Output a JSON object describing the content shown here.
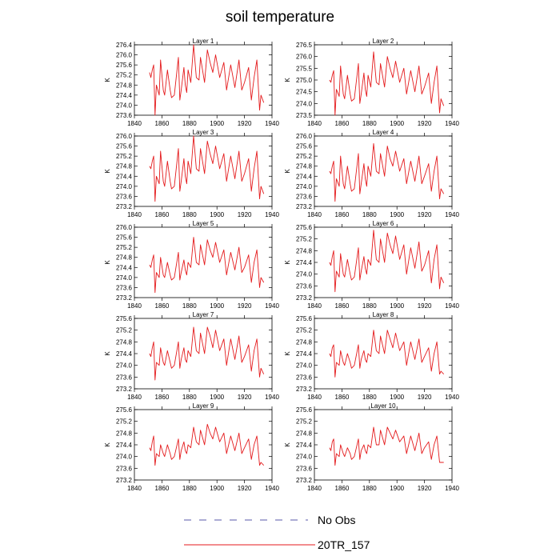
{
  "title": "soil temperature",
  "legend": {
    "placement": "bottom",
    "items": [
      {
        "label": "No Obs",
        "style": "dashed",
        "color": "#5a5aa8"
      },
      {
        "label": "20TR_157",
        "style": "solid",
        "color": "#e41a1c"
      }
    ]
  },
  "colors": {
    "series": "#e41a1c",
    "noobs": "#5a5aa8"
  },
  "chart_data": [
    {
      "type": "line",
      "title": "Layer 1",
      "ylabel": "K",
      "xlim": [
        1840,
        1940
      ],
      "xticks": [
        1840,
        1860,
        1880,
        1900,
        1920,
        1940
      ],
      "ylim": [
        273.6,
        276.4
      ],
      "yticks": [
        273.6,
        274.0,
        274.4,
        274.8,
        275.2,
        275.6,
        276.0,
        276.4
      ],
      "x": [
        1851,
        1852,
        1853,
        1854,
        1855,
        1856,
        1858,
        1859,
        1861,
        1862,
        1864,
        1866,
        1867,
        1869,
        1872,
        1873,
        1874,
        1876,
        1877,
        1878,
        1879,
        1881,
        1883,
        1885,
        1887,
        1888,
        1891,
        1893,
        1895,
        1897,
        1899,
        1902,
        1905,
        1907,
        1910,
        1913,
        1916,
        1918,
        1920,
        1923,
        1925,
        1927,
        1929,
        1931,
        1932,
        1934
      ],
      "y": [
        275.3,
        275.1,
        275.4,
        275.6,
        273.6,
        274.8,
        274.4,
        275.8,
        274.6,
        274.4,
        275.4,
        274.6,
        274.3,
        274.4,
        275.9,
        274.2,
        274.6,
        275.5,
        274.8,
        274.5,
        275.4,
        274.9,
        276.4,
        275.1,
        275.0,
        275.9,
        274.9,
        276.2,
        275.7,
        275.3,
        276.0,
        275.1,
        275.7,
        274.6,
        275.6,
        274.7,
        275.8,
        274.6,
        274.9,
        275.5,
        274.2,
        275.1,
        275.8,
        273.8,
        274.4,
        274.1
      ]
    },
    {
      "type": "line",
      "title": "Layer 2",
      "ylabel": "K",
      "xlim": [
        1840,
        1940
      ],
      "xticks": [
        1840,
        1860,
        1880,
        1900,
        1920,
        1940
      ],
      "ylim": [
        273.5,
        276.5
      ],
      "yticks": [
        273.5,
        274.0,
        274.5,
        275.0,
        275.5,
        276.0,
        276.5
      ],
      "x": [
        1851,
        1852,
        1853,
        1854,
        1855,
        1856,
        1858,
        1859,
        1861,
        1862,
        1864,
        1866,
        1867,
        1869,
        1872,
        1873,
        1874,
        1876,
        1877,
        1878,
        1879,
        1881,
        1883,
        1885,
        1887,
        1888,
        1891,
        1893,
        1895,
        1897,
        1899,
        1902,
        1905,
        1907,
        1910,
        1913,
        1916,
        1918,
        1920,
        1923,
        1925,
        1927,
        1929,
        1931,
        1932,
        1934
      ],
      "y": [
        275.0,
        274.9,
        275.2,
        275.4,
        273.5,
        274.6,
        274.3,
        275.6,
        274.4,
        274.2,
        275.2,
        274.4,
        274.1,
        274.2,
        275.7,
        274.0,
        274.4,
        275.3,
        274.6,
        274.3,
        275.2,
        274.7,
        276.2,
        274.9,
        274.8,
        275.7,
        274.7,
        276.0,
        275.5,
        275.1,
        275.8,
        274.9,
        275.5,
        274.4,
        275.4,
        274.5,
        275.6,
        274.4,
        274.7,
        275.3,
        274.0,
        274.9,
        275.6,
        273.6,
        274.2,
        273.9
      ]
    },
    {
      "type": "line",
      "title": "Layer 3",
      "ylabel": "K",
      "xlim": [
        1840,
        1940
      ],
      "xticks": [
        1840,
        1860,
        1880,
        1900,
        1920,
        1940
      ],
      "ylim": [
        273.2,
        276.0
      ],
      "yticks": [
        273.2,
        273.6,
        274.0,
        274.4,
        274.8,
        275.2,
        275.6,
        276.0
      ],
      "x": [
        1851,
        1852,
        1853,
        1854,
        1855,
        1856,
        1858,
        1859,
        1861,
        1862,
        1864,
        1866,
        1867,
        1869,
        1872,
        1873,
        1874,
        1876,
        1877,
        1878,
        1879,
        1881,
        1883,
        1885,
        1887,
        1888,
        1891,
        1893,
        1895,
        1897,
        1899,
        1902,
        1905,
        1907,
        1910,
        1913,
        1916,
        1918,
        1920,
        1923,
        1925,
        1927,
        1929,
        1931,
        1932,
        1934
      ],
      "y": [
        274.8,
        274.7,
        275.0,
        275.2,
        273.4,
        274.4,
        274.1,
        275.4,
        274.2,
        274.0,
        275.0,
        274.2,
        273.9,
        274.0,
        275.5,
        273.8,
        274.2,
        275.1,
        274.4,
        274.1,
        275.0,
        274.5,
        276.0,
        274.7,
        274.6,
        275.5,
        274.5,
        275.8,
        275.3,
        274.9,
        275.6,
        274.7,
        275.3,
        274.2,
        275.2,
        274.3,
        275.4,
        274.2,
        274.5,
        275.1,
        273.8,
        274.7,
        275.4,
        273.5,
        274.0,
        273.7
      ]
    },
    {
      "type": "line",
      "title": "Layer 4",
      "ylabel": "K",
      "xlim": [
        1840,
        1940
      ],
      "xticks": [
        1840,
        1860,
        1880,
        1900,
        1920,
        1940
      ],
      "ylim": [
        273.2,
        276.0
      ],
      "yticks": [
        273.2,
        273.6,
        274.0,
        274.4,
        274.8,
        275.2,
        275.6,
        276.0
      ],
      "x": [
        1851,
        1852,
        1853,
        1854,
        1855,
        1856,
        1858,
        1859,
        1861,
        1862,
        1864,
        1866,
        1867,
        1869,
        1872,
        1873,
        1874,
        1876,
        1877,
        1878,
        1879,
        1881,
        1883,
        1885,
        1887,
        1888,
        1891,
        1893,
        1895,
        1897,
        1899,
        1902,
        1905,
        1907,
        1910,
        1913,
        1916,
        1918,
        1920,
        1923,
        1925,
        1927,
        1929,
        1931,
        1932,
        1934
      ],
      "y": [
        274.6,
        274.5,
        274.8,
        275.0,
        273.4,
        274.3,
        274.0,
        275.2,
        274.1,
        273.9,
        274.8,
        274.1,
        273.8,
        273.9,
        275.3,
        273.7,
        274.1,
        274.9,
        274.3,
        274.0,
        274.8,
        274.4,
        275.7,
        274.6,
        274.5,
        275.3,
        274.4,
        275.6,
        275.1,
        274.8,
        275.4,
        274.6,
        275.1,
        274.1,
        275.0,
        274.2,
        275.2,
        274.1,
        274.4,
        274.9,
        273.8,
        274.6,
        275.2,
        273.5,
        273.9,
        273.7
      ]
    },
    {
      "type": "line",
      "title": "Layer 5",
      "ylabel": "K",
      "xlim": [
        1840,
        1940
      ],
      "xticks": [
        1840,
        1860,
        1880,
        1900,
        1920,
        1940
      ],
      "ylim": [
        273.2,
        276.0
      ],
      "yticks": [
        273.2,
        273.6,
        274.0,
        274.4,
        274.8,
        275.2,
        275.6,
        276.0
      ],
      "x": [
        1851,
        1852,
        1853,
        1854,
        1855,
        1856,
        1858,
        1859,
        1861,
        1862,
        1864,
        1866,
        1867,
        1869,
        1872,
        1873,
        1874,
        1876,
        1877,
        1878,
        1879,
        1881,
        1883,
        1885,
        1887,
        1888,
        1891,
        1893,
        1895,
        1897,
        1899,
        1902,
        1905,
        1907,
        1910,
        1913,
        1916,
        1918,
        1920,
        1923,
        1925,
        1927,
        1929,
        1931,
        1932,
        1934
      ],
      "y": [
        274.5,
        274.4,
        274.7,
        274.9,
        273.4,
        274.2,
        274.0,
        274.8,
        274.1,
        274.0,
        274.6,
        274.1,
        273.9,
        274.0,
        275.0,
        273.9,
        274.2,
        274.7,
        274.3,
        274.1,
        274.6,
        274.4,
        275.6,
        274.6,
        274.5,
        275.3,
        274.5,
        275.5,
        275.1,
        274.8,
        275.4,
        274.6,
        275.1,
        274.1,
        275.0,
        274.3,
        275.2,
        274.2,
        274.4,
        274.9,
        273.8,
        274.6,
        275.1,
        273.6,
        274.0,
        273.8
      ]
    },
    {
      "type": "line",
      "title": "Layer 6",
      "ylabel": "K",
      "xlim": [
        1840,
        1940
      ],
      "xticks": [
        1840,
        1860,
        1880,
        1900,
        1920,
        1940
      ],
      "ylim": [
        273.2,
        275.6
      ],
      "yticks": [
        273.2,
        273.6,
        274.0,
        274.4,
        274.8,
        275.2,
        275.6
      ],
      "x": [
        1851,
        1852,
        1853,
        1854,
        1855,
        1856,
        1858,
        1859,
        1861,
        1862,
        1864,
        1866,
        1867,
        1869,
        1872,
        1873,
        1874,
        1876,
        1877,
        1878,
        1879,
        1881,
        1883,
        1885,
        1887,
        1888,
        1891,
        1893,
        1895,
        1897,
        1899,
        1902,
        1905,
        1907,
        1910,
        1913,
        1916,
        1918,
        1920,
        1923,
        1925,
        1927,
        1929,
        1931,
        1932,
        1934
      ],
      "y": [
        274.4,
        274.3,
        274.6,
        274.8,
        273.4,
        274.1,
        273.9,
        274.7,
        274.0,
        273.9,
        274.5,
        274.0,
        273.8,
        273.9,
        274.9,
        273.8,
        274.1,
        274.6,
        274.2,
        274.0,
        274.5,
        274.3,
        275.5,
        274.5,
        274.4,
        275.2,
        274.4,
        275.4,
        275.0,
        274.7,
        275.3,
        274.5,
        275.0,
        274.0,
        274.9,
        274.2,
        275.1,
        274.1,
        274.3,
        274.8,
        273.7,
        274.5,
        275.0,
        273.5,
        273.9,
        273.7
      ]
    },
    {
      "type": "line",
      "title": "Layer 7",
      "ylabel": "K",
      "xlim": [
        1840,
        1940
      ],
      "xticks": [
        1840,
        1860,
        1880,
        1900,
        1920,
        1940
      ],
      "ylim": [
        273.2,
        275.6
      ],
      "yticks": [
        273.2,
        273.6,
        274.0,
        274.4,
        274.8,
        275.2,
        275.6
      ],
      "x": [
        1851,
        1852,
        1853,
        1854,
        1855,
        1856,
        1858,
        1859,
        1861,
        1862,
        1864,
        1866,
        1867,
        1869,
        1872,
        1873,
        1874,
        1876,
        1877,
        1878,
        1879,
        1881,
        1883,
        1885,
        1887,
        1888,
        1891,
        1893,
        1895,
        1897,
        1899,
        1902,
        1905,
        1907,
        1910,
        1913,
        1916,
        1918,
        1920,
        1923,
        1925,
        1927,
        1929,
        1931,
        1932,
        1934
      ],
      "y": [
        274.4,
        274.3,
        274.6,
        274.8,
        273.5,
        274.1,
        274.0,
        274.6,
        274.1,
        274.0,
        274.5,
        274.1,
        273.9,
        274.0,
        274.8,
        273.9,
        274.2,
        274.6,
        274.2,
        274.1,
        274.5,
        274.3,
        275.3,
        274.5,
        274.4,
        275.1,
        274.4,
        275.3,
        275.0,
        274.6,
        275.2,
        274.5,
        274.9,
        274.0,
        274.9,
        274.2,
        275.0,
        274.1,
        274.3,
        274.7,
        273.8,
        274.5,
        274.9,
        273.6,
        273.9,
        273.7
      ]
    },
    {
      "type": "line",
      "title": "Layer 8",
      "ylabel": "K",
      "xlim": [
        1840,
        1940
      ],
      "xticks": [
        1840,
        1860,
        1880,
        1900,
        1920,
        1940
      ],
      "ylim": [
        273.2,
        275.6
      ],
      "yticks": [
        273.2,
        273.6,
        274.0,
        274.4,
        274.8,
        275.2,
        275.6
      ],
      "x": [
        1851,
        1852,
        1853,
        1854,
        1855,
        1856,
        1858,
        1859,
        1861,
        1862,
        1864,
        1866,
        1867,
        1869,
        1872,
        1873,
        1874,
        1876,
        1877,
        1878,
        1879,
        1881,
        1883,
        1885,
        1887,
        1888,
        1891,
        1893,
        1895,
        1897,
        1899,
        1902,
        1905,
        1907,
        1910,
        1913,
        1916,
        1918,
        1920,
        1923,
        1925,
        1927,
        1929,
        1931,
        1932,
        1934
      ],
      "y": [
        274.4,
        274.3,
        274.6,
        274.7,
        273.6,
        274.1,
        274.0,
        274.5,
        274.1,
        274.0,
        274.4,
        274.1,
        273.9,
        274.0,
        274.7,
        273.9,
        274.2,
        274.5,
        274.2,
        274.1,
        274.4,
        274.3,
        275.2,
        274.5,
        274.4,
        275.0,
        274.4,
        275.2,
        274.9,
        274.6,
        275.1,
        274.5,
        274.8,
        274.0,
        274.8,
        274.2,
        274.9,
        274.1,
        274.3,
        274.6,
        273.8,
        274.4,
        274.8,
        273.7,
        273.8,
        273.7
      ]
    },
    {
      "type": "line",
      "title": "Layer 9",
      "ylabel": "K",
      "xlim": [
        1840,
        1940
      ],
      "xticks": [
        1840,
        1860,
        1880,
        1900,
        1920,
        1940
      ],
      "ylim": [
        273.2,
        275.6
      ],
      "yticks": [
        273.2,
        273.6,
        274.0,
        274.4,
        274.8,
        275.2,
        275.6
      ],
      "x": [
        1851,
        1852,
        1853,
        1854,
        1855,
        1856,
        1858,
        1859,
        1861,
        1862,
        1864,
        1866,
        1867,
        1869,
        1872,
        1873,
        1874,
        1876,
        1877,
        1878,
        1879,
        1881,
        1883,
        1885,
        1887,
        1888,
        1891,
        1893,
        1895,
        1897,
        1899,
        1902,
        1905,
        1907,
        1910,
        1913,
        1916,
        1918,
        1920,
        1923,
        1925,
        1927,
        1929,
        1931,
        1932,
        1934
      ],
      "y": [
        274.3,
        274.2,
        274.5,
        274.7,
        273.7,
        274.1,
        274.0,
        274.4,
        274.1,
        274.0,
        274.4,
        274.1,
        273.9,
        274.0,
        274.6,
        273.9,
        274.2,
        274.5,
        274.2,
        274.1,
        274.4,
        274.3,
        275.0,
        274.5,
        274.4,
        274.9,
        274.4,
        275.1,
        274.8,
        274.6,
        275.0,
        274.5,
        274.8,
        274.1,
        274.7,
        274.2,
        274.8,
        274.1,
        274.3,
        274.6,
        273.9,
        274.4,
        274.7,
        273.7,
        273.8,
        273.7
      ]
    },
    {
      "type": "line",
      "title": "Layer 10",
      "ylabel": "K",
      "xlim": [
        1840,
        1940
      ],
      "xticks": [
        1840,
        1860,
        1880,
        1900,
        1920,
        1940
      ],
      "ylim": [
        273.2,
        275.6
      ],
      "yticks": [
        273.2,
        273.6,
        274.0,
        274.4,
        274.8,
        275.2,
        275.6
      ],
      "x": [
        1851,
        1852,
        1853,
        1854,
        1855,
        1856,
        1858,
        1859,
        1861,
        1862,
        1864,
        1866,
        1867,
        1869,
        1872,
        1873,
        1874,
        1876,
        1877,
        1878,
        1879,
        1881,
        1883,
        1885,
        1887,
        1888,
        1891,
        1893,
        1895,
        1897,
        1899,
        1902,
        1905,
        1907,
        1910,
        1913,
        1916,
        1918,
        1920,
        1923,
        1925,
        1927,
        1929,
        1931,
        1932,
        1934
      ],
      "y": [
        274.3,
        274.2,
        274.5,
        274.6,
        273.7,
        274.1,
        274.0,
        274.4,
        274.1,
        274.0,
        274.3,
        274.1,
        273.9,
        274.0,
        274.6,
        273.9,
        274.2,
        274.4,
        274.2,
        274.1,
        274.4,
        274.3,
        275.0,
        274.4,
        274.4,
        274.9,
        274.4,
        275.0,
        274.8,
        274.6,
        274.9,
        274.5,
        274.7,
        274.1,
        274.7,
        274.2,
        274.8,
        274.1,
        274.3,
        274.5,
        273.9,
        274.4,
        274.7,
        273.8,
        273.8,
        273.8
      ]
    }
  ]
}
